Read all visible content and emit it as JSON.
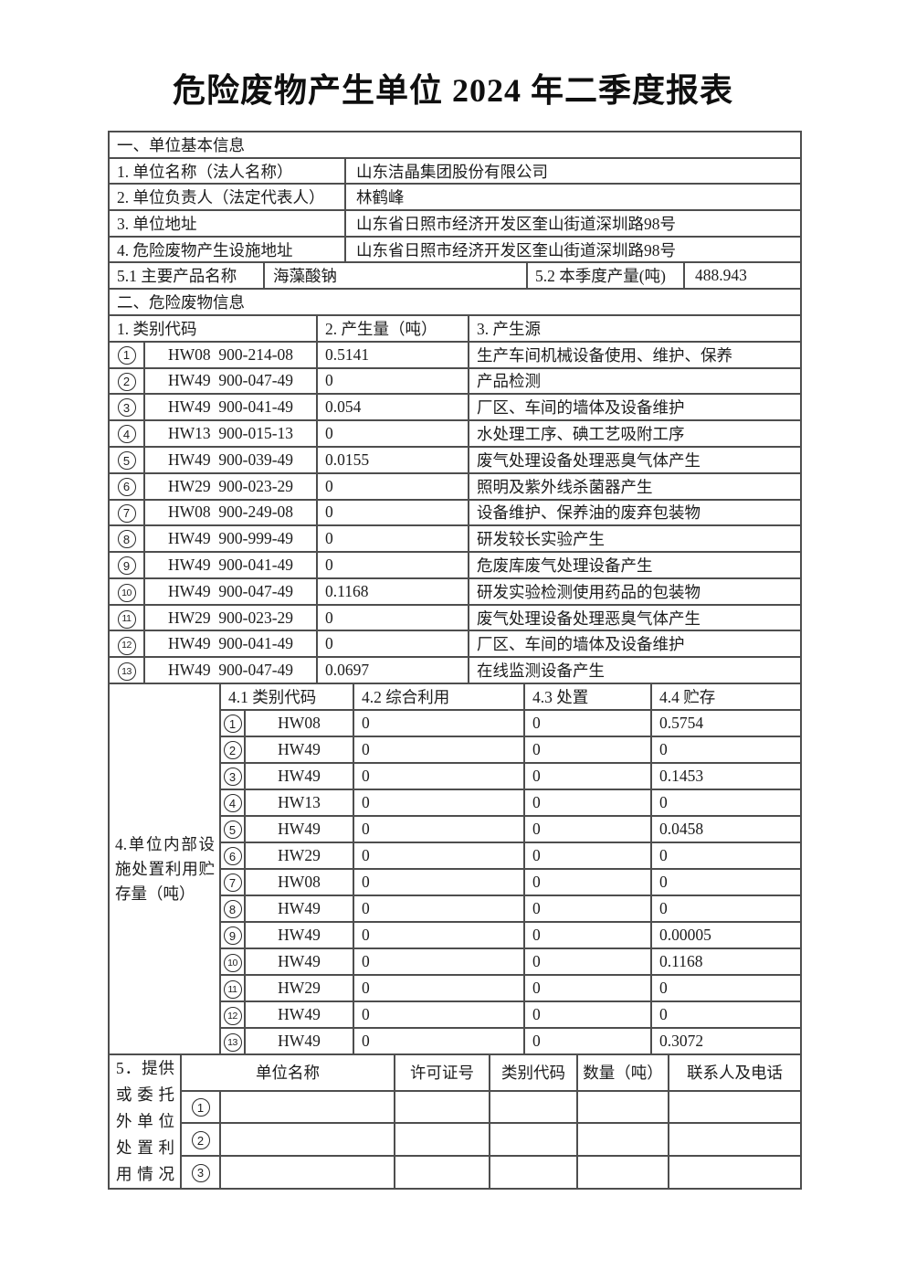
{
  "title": "危险废物产生单位 2024 年二季度报表",
  "section1": {
    "header": "一、单位基本信息",
    "rows": [
      {
        "label": "1. 单位名称（法人名称）",
        "value": "山东洁晶集团股份有限公司"
      },
      {
        "label": "2. 单位负责人（法定代表人）",
        "value": "林鹤峰"
      },
      {
        "label": "3. 单位地址",
        "value": "山东省日照市经济开发区奎山街道深圳路98号"
      },
      {
        "label": "4. 危险废物产生设施地址",
        "value": "山东省日照市经济开发区奎山街道深圳路98号"
      }
    ],
    "product": {
      "name_label": "5.1 主要产品名称",
      "name_value": "海藻酸钠",
      "output_label": "5.2 本季度产量(吨)",
      "output_value": "488.943"
    }
  },
  "section2": {
    "header": "二、危险废物信息",
    "col_headers": [
      "1. 类别代码",
      "2. 产生量（吨）",
      "3. 产生源"
    ],
    "rows": [
      {
        "num": "1",
        "code": "HW08  900-214-08",
        "qty": "0.5141",
        "source": "生产车间机械设备使用、维护、保养"
      },
      {
        "num": "2",
        "code": "HW49  900-047-49",
        "qty": "0",
        "source": "产品检测"
      },
      {
        "num": "3",
        "code": "HW49  900-041-49",
        "qty": "0.054",
        "source": "厂区、车间的墙体及设备维护"
      },
      {
        "num": "4",
        "code": "HW13  900-015-13",
        "qty": "0",
        "source": "水处理工序、碘工艺吸附工序"
      },
      {
        "num": "5",
        "code": "HW49  900-039-49",
        "qty": "0.0155",
        "source": "废气处理设备处理恶臭气体产生"
      },
      {
        "num": "6",
        "code": "HW29  900-023-29",
        "qty": "0",
        "source": "照明及紫外线杀菌器产生"
      },
      {
        "num": "7",
        "code": "HW08  900-249-08",
        "qty": "0",
        "source": "设备维护、保养油的废弃包装物"
      },
      {
        "num": "8",
        "code": "HW49  900-999-49",
        "qty": "0",
        "source": "研发较长实验产生"
      },
      {
        "num": "9",
        "code": "HW49  900-041-49",
        "qty": "0",
        "source": "危废库废气处理设备产生"
      },
      {
        "num": "10",
        "code": "HW49  900-047-49",
        "qty": "0.1168",
        "source": "研发实验检测使用药品的包装物"
      },
      {
        "num": "11",
        "code": "HW29  900-023-29",
        "qty": "0",
        "source": "废气处理设备处理恶臭气体产生"
      },
      {
        "num": "12",
        "code": "HW49  900-041-49",
        "qty": "0",
        "source": "厂区、车间的墙体及设备维护"
      },
      {
        "num": "13",
        "code": "HW49  900-047-49",
        "qty": "0.0697",
        "source": "在线监测设备产生"
      }
    ]
  },
  "section4": {
    "label": "4.单位内部设施处置利用贮存量（吨）",
    "col_headers": [
      "4.1 类别代码",
      "4.2 综合利用",
      "4.3 处置",
      "4.4 贮存"
    ],
    "rows": [
      {
        "num": "1",
        "code": "HW08",
        "use": "0",
        "disposal": "0",
        "storage": "0.5754"
      },
      {
        "num": "2",
        "code": "HW49",
        "use": "0",
        "disposal": "0",
        "storage": "0"
      },
      {
        "num": "3",
        "code": "HW49",
        "use": "0",
        "disposal": "0",
        "storage": "0.1453"
      },
      {
        "num": "4",
        "code": "HW13",
        "use": "0",
        "disposal": "0",
        "storage": "0"
      },
      {
        "num": "5",
        "code": "HW49",
        "use": "0",
        "disposal": "0",
        "storage": "0.0458"
      },
      {
        "num": "6",
        "code": "HW29",
        "use": "0",
        "disposal": "0",
        "storage": "0"
      },
      {
        "num": "7",
        "code": "HW08",
        "use": "0",
        "disposal": "0",
        "storage": "0"
      },
      {
        "num": "8",
        "code": "HW49",
        "use": "0",
        "disposal": "0",
        "storage": "0"
      },
      {
        "num": "9",
        "code": "HW49",
        "use": "0",
        "disposal": "0",
        "storage": "0.00005"
      },
      {
        "num": "10",
        "code": "HW49",
        "use": "0",
        "disposal": "0",
        "storage": "0.1168"
      },
      {
        "num": "11",
        "code": "HW29",
        "use": "0",
        "disposal": "0",
        "storage": "0"
      },
      {
        "num": "12",
        "code": "HW49",
        "use": "0",
        "disposal": "0",
        "storage": "0"
      },
      {
        "num": "13",
        "code": "HW49",
        "use": "0",
        "disposal": "0",
        "storage": "0.3072"
      }
    ]
  },
  "section5": {
    "label": "5．提供或委托外单位处置利用情况",
    "col_headers": [
      "单位名称",
      "许可证号",
      "类别代码",
      "数量（吨）",
      "联系人及电话"
    ],
    "rows": [
      {
        "num": "1",
        "name": "",
        "permit": "",
        "code": "",
        "qty": "",
        "contact": ""
      },
      {
        "num": "2",
        "name": "",
        "permit": "",
        "code": "",
        "qty": "",
        "contact": ""
      },
      {
        "num": "3",
        "name": "",
        "permit": "",
        "code": "",
        "qty": "",
        "contact": ""
      }
    ]
  }
}
